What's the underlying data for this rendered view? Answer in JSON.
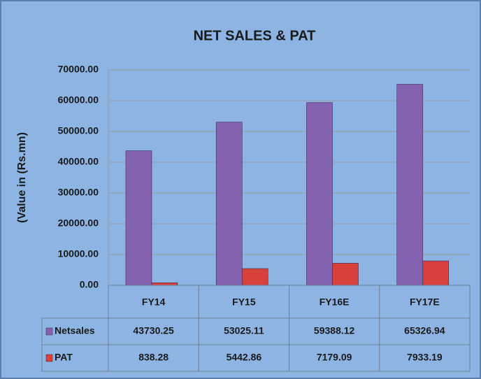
{
  "chart_data": {
    "type": "bar",
    "title": "NET SALES & PAT",
    "y_label": "(Value in (Rs.mn)",
    "categories": [
      "FY14",
      "FY15",
      "FY16E",
      "FY17E"
    ],
    "series": [
      {
        "name": "Netsales",
        "color": "#8462b0",
        "values": [
          43730.25,
          53025.11,
          59388.12,
          65326.94
        ]
      },
      {
        "name": "PAT",
        "color": "#d8403b",
        "values": [
          838.28,
          5442.86,
          7179.09,
          7933.19
        ]
      }
    ],
    "ylim": [
      0,
      70000
    ],
    "yticks": [
      {
        "value": 0,
        "label": "0.00"
      },
      {
        "value": 10000,
        "label": "10000.00"
      },
      {
        "value": 20000,
        "label": "20000.00"
      },
      {
        "value": 30000,
        "label": "30000.00"
      },
      {
        "value": 40000,
        "label": "40000.00"
      },
      {
        "value": 50000,
        "label": "50000.00"
      },
      {
        "value": 60000,
        "label": "60000.00"
      },
      {
        "value": 70000,
        "label": "70000.00"
      }
    ],
    "grid": true
  }
}
